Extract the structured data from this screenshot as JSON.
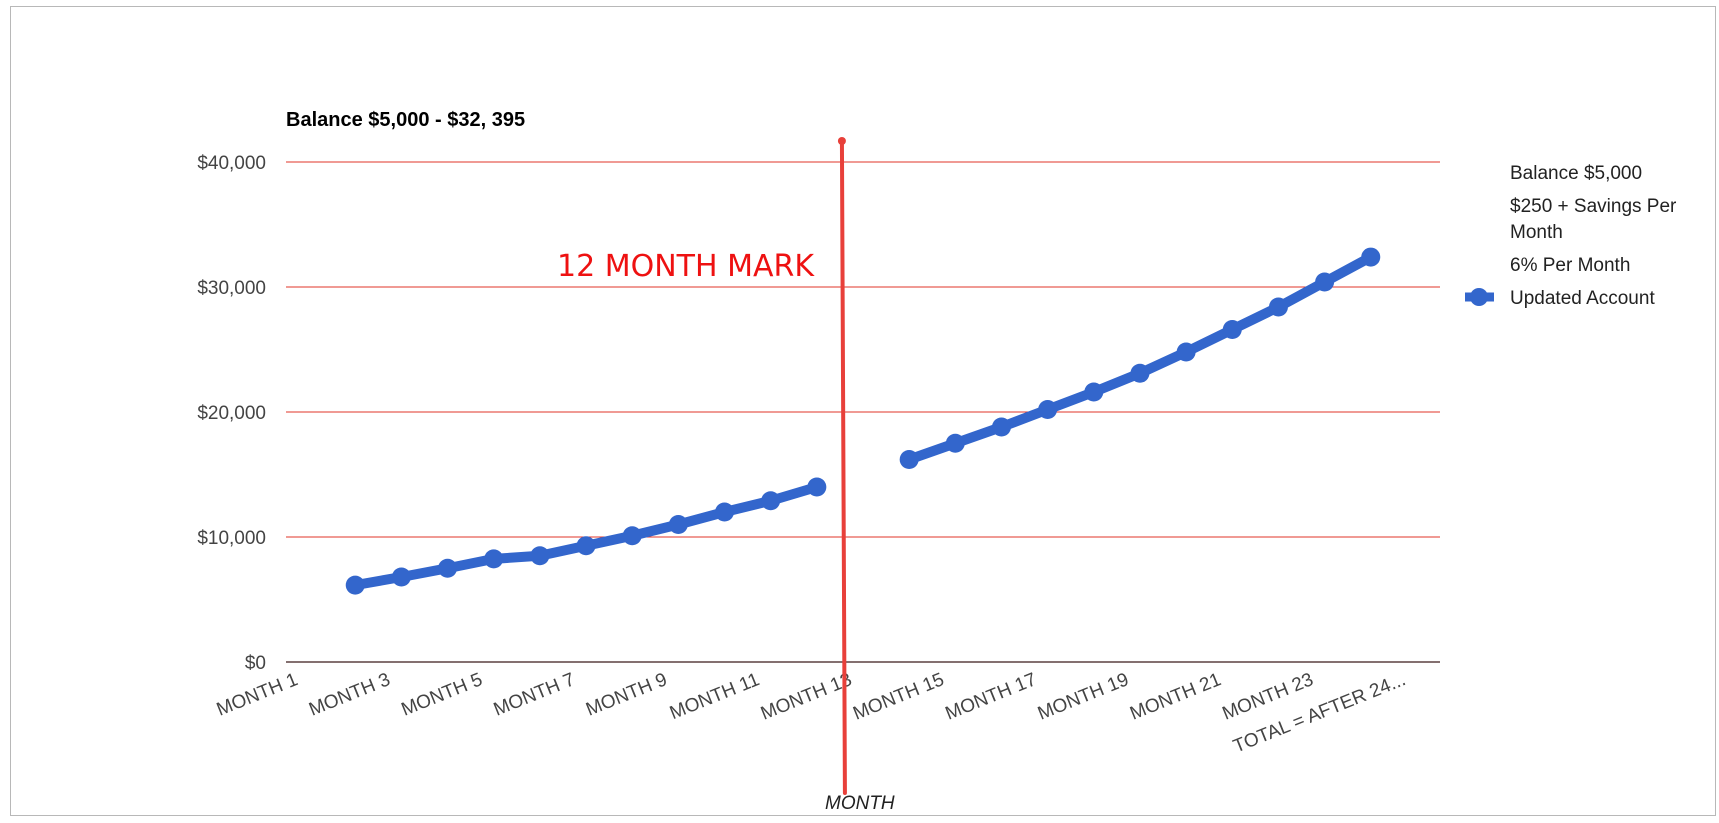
{
  "chart_data": {
    "type": "line",
    "title": "Balance $5,000 - $32, 395",
    "xlabel": "MONTH",
    "ylabel": "",
    "ylim": [
      0,
      40000
    ],
    "y_ticks": [
      "$0",
      "$10,000",
      "$20,000",
      "$30,000",
      "$40,000"
    ],
    "y_tick_values": [
      0,
      10000,
      20000,
      30000,
      40000
    ],
    "grid": true,
    "colors": {
      "gridline": "#e0342a",
      "series": "#3366cc",
      "marker_line": "#e8403a",
      "annotation": "#ee1111"
    },
    "categories": [
      "MONTH 1",
      "MONTH 2",
      "MONTH 3",
      "MONTH 4",
      "MONTH 5",
      "MONTH 6",
      "MONTH 7",
      "MONTH 8",
      "MONTH 9",
      "MONTH 10",
      "MONTH 11",
      "MONTH 12",
      "MONTH 13",
      "MONTH 14",
      "MONTH 15",
      "MONTH 16",
      "MONTH 17",
      "MONTH 18",
      "MONTH 19",
      "MONTH 20",
      "MONTH 21",
      "MONTH 22",
      "MONTH 23",
      "MONTH 24",
      "TOTAL = AFTER 24..."
    ],
    "x_tick_labels": [
      "MONTH 1",
      "MONTH 3",
      "MONTH 5",
      "MONTH 7",
      "MONTH 9",
      "MONTH 11",
      "MONTH 13",
      "MONTH 15",
      "MONTH 17",
      "MONTH 19",
      "MONTH 21",
      "MONTH 23",
      "TOTAL = AFTER 24..."
    ],
    "x_tick_indices": [
      0,
      2,
      4,
      6,
      8,
      10,
      12,
      14,
      16,
      18,
      20,
      22,
      24
    ],
    "series": [
      {
        "name": "Updated Account",
        "values": [
          null,
          6150,
          6800,
          7500,
          8250,
          8500,
          9300,
          10100,
          11000,
          12000,
          12900,
          14000,
          null,
          16200,
          17500,
          18800,
          20200,
          21600,
          23100,
          24800,
          26600,
          28400,
          30400,
          32395,
          null
        ]
      }
    ],
    "legend": {
      "position": "right",
      "entries": [
        "Balance $5,000",
        "$250 + Savings Per Month",
        "6% Per Month",
        "Updated Account"
      ]
    },
    "annotations": [
      {
        "text": "12 MONTH MARK"
      }
    ]
  }
}
